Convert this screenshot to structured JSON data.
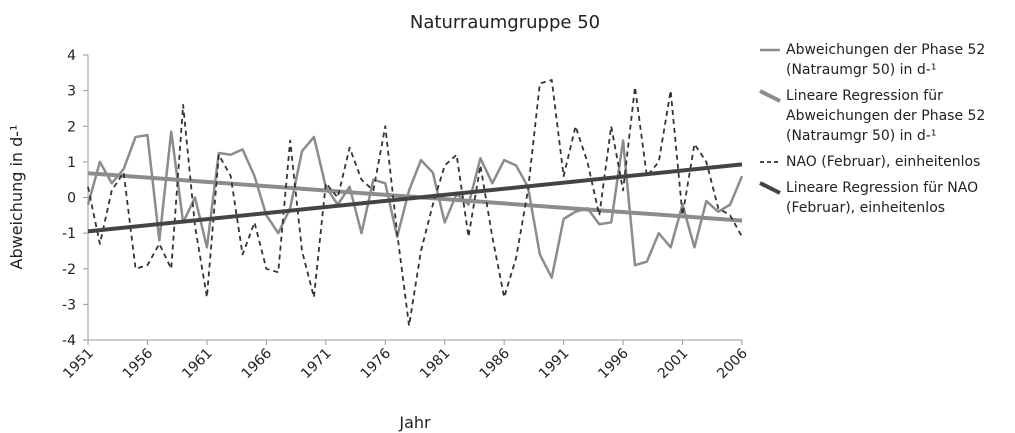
{
  "chart_data": {
    "type": "line",
    "title": "Naturraumgruppe 50",
    "x_label": "Jahr",
    "y_label": "Abweichung in d-¹",
    "x": [
      1951,
      1952,
      1953,
      1954,
      1955,
      1956,
      1957,
      1958,
      1959,
      1960,
      1961,
      1962,
      1963,
      1964,
      1965,
      1966,
      1967,
      1968,
      1969,
      1970,
      1971,
      1972,
      1973,
      1974,
      1975,
      1976,
      1977,
      1978,
      1979,
      1980,
      1981,
      1982,
      1983,
      1984,
      1985,
      1986,
      1987,
      1988,
      1989,
      1990,
      1991,
      1992,
      1993,
      1994,
      1995,
      1996,
      1997,
      1998,
      1999,
      2000,
      2001,
      2002,
      2003,
      2004,
      2005,
      2006
    ],
    "series": [
      {
        "name": "Abweichungen der Phase 52 (Natraumgr 50) in d-¹",
        "color": "#8c8c8c",
        "width": 2.5,
        "dash": false,
        "values": [
          -0.2,
          1.0,
          0.4,
          0.8,
          1.7,
          1.75,
          -1.2,
          1.85,
          -0.7,
          0.0,
          -1.4,
          1.25,
          1.2,
          1.35,
          0.6,
          -0.5,
          -1.0,
          -0.3,
          1.3,
          1.7,
          0.3,
          -0.2,
          0.3,
          -1.0,
          0.5,
          0.4,
          -1.1,
          0.2,
          1.05,
          0.7,
          -0.7,
          0.1,
          -0.2,
          1.1,
          0.4,
          1.05,
          0.9,
          0.3,
          -1.6,
          -2.25,
          -0.6,
          -0.4,
          -0.3,
          -0.75,
          -0.7,
          1.6,
          -1.9,
          -1.8,
          -1.0,
          -1.4,
          -0.2,
          -1.4,
          -0.1,
          -0.4,
          -0.2,
          0.6
        ]
      },
      {
        "name": "Lineare Regression für Abweichungen der Phase 52 (Natraumgr 50) in d-¹",
        "color": "#8c8c8c",
        "width": 4,
        "dash": false,
        "x": [
          1951,
          2006
        ],
        "values": [
          0.68,
          -0.65
        ]
      },
      {
        "name": "NAO (Februar), einheitenlos",
        "color": "#333333",
        "width": 1.8,
        "dash": true,
        "values": [
          0.3,
          -1.3,
          0.2,
          0.7,
          -2.0,
          -1.9,
          -1.3,
          -2.0,
          2.6,
          -0.8,
          -2.8,
          1.2,
          0.6,
          -1.6,
          -0.7,
          -2.0,
          -2.1,
          1.6,
          -1.5,
          -2.8,
          0.4,
          0.0,
          1.4,
          0.5,
          0.2,
          2.0,
          -1.0,
          -3.6,
          -1.5,
          -0.2,
          0.9,
          1.2,
          -1.1,
          0.9,
          -1.1,
          -2.8,
          -1.7,
          0.2,
          3.2,
          3.3,
          0.6,
          2.0,
          1.0,
          -0.5,
          2.0,
          0.2,
          3.1,
          0.6,
          1.0,
          3.0,
          -0.5,
          1.5,
          1.0,
          -0.3,
          -0.5,
          -1.1
        ]
      },
      {
        "name": "Lineare Regression für NAO (Februar), einheitenlos",
        "color": "#444444",
        "width": 4,
        "dash": false,
        "x": [
          1951,
          2006
        ],
        "values": [
          -0.95,
          0.93
        ]
      }
    ],
    "xlim": [
      1951,
      2006
    ],
    "xticks": [
      1951,
      1956,
      1961,
      1966,
      1971,
      1976,
      1981,
      1986,
      1991,
      1996,
      2001,
      2006
    ],
    "ylim": [
      -4,
      4
    ],
    "yticks": [
      -4,
      -3,
      -2,
      -1,
      0,
      1,
      2,
      3,
      4
    ],
    "grid": false
  }
}
